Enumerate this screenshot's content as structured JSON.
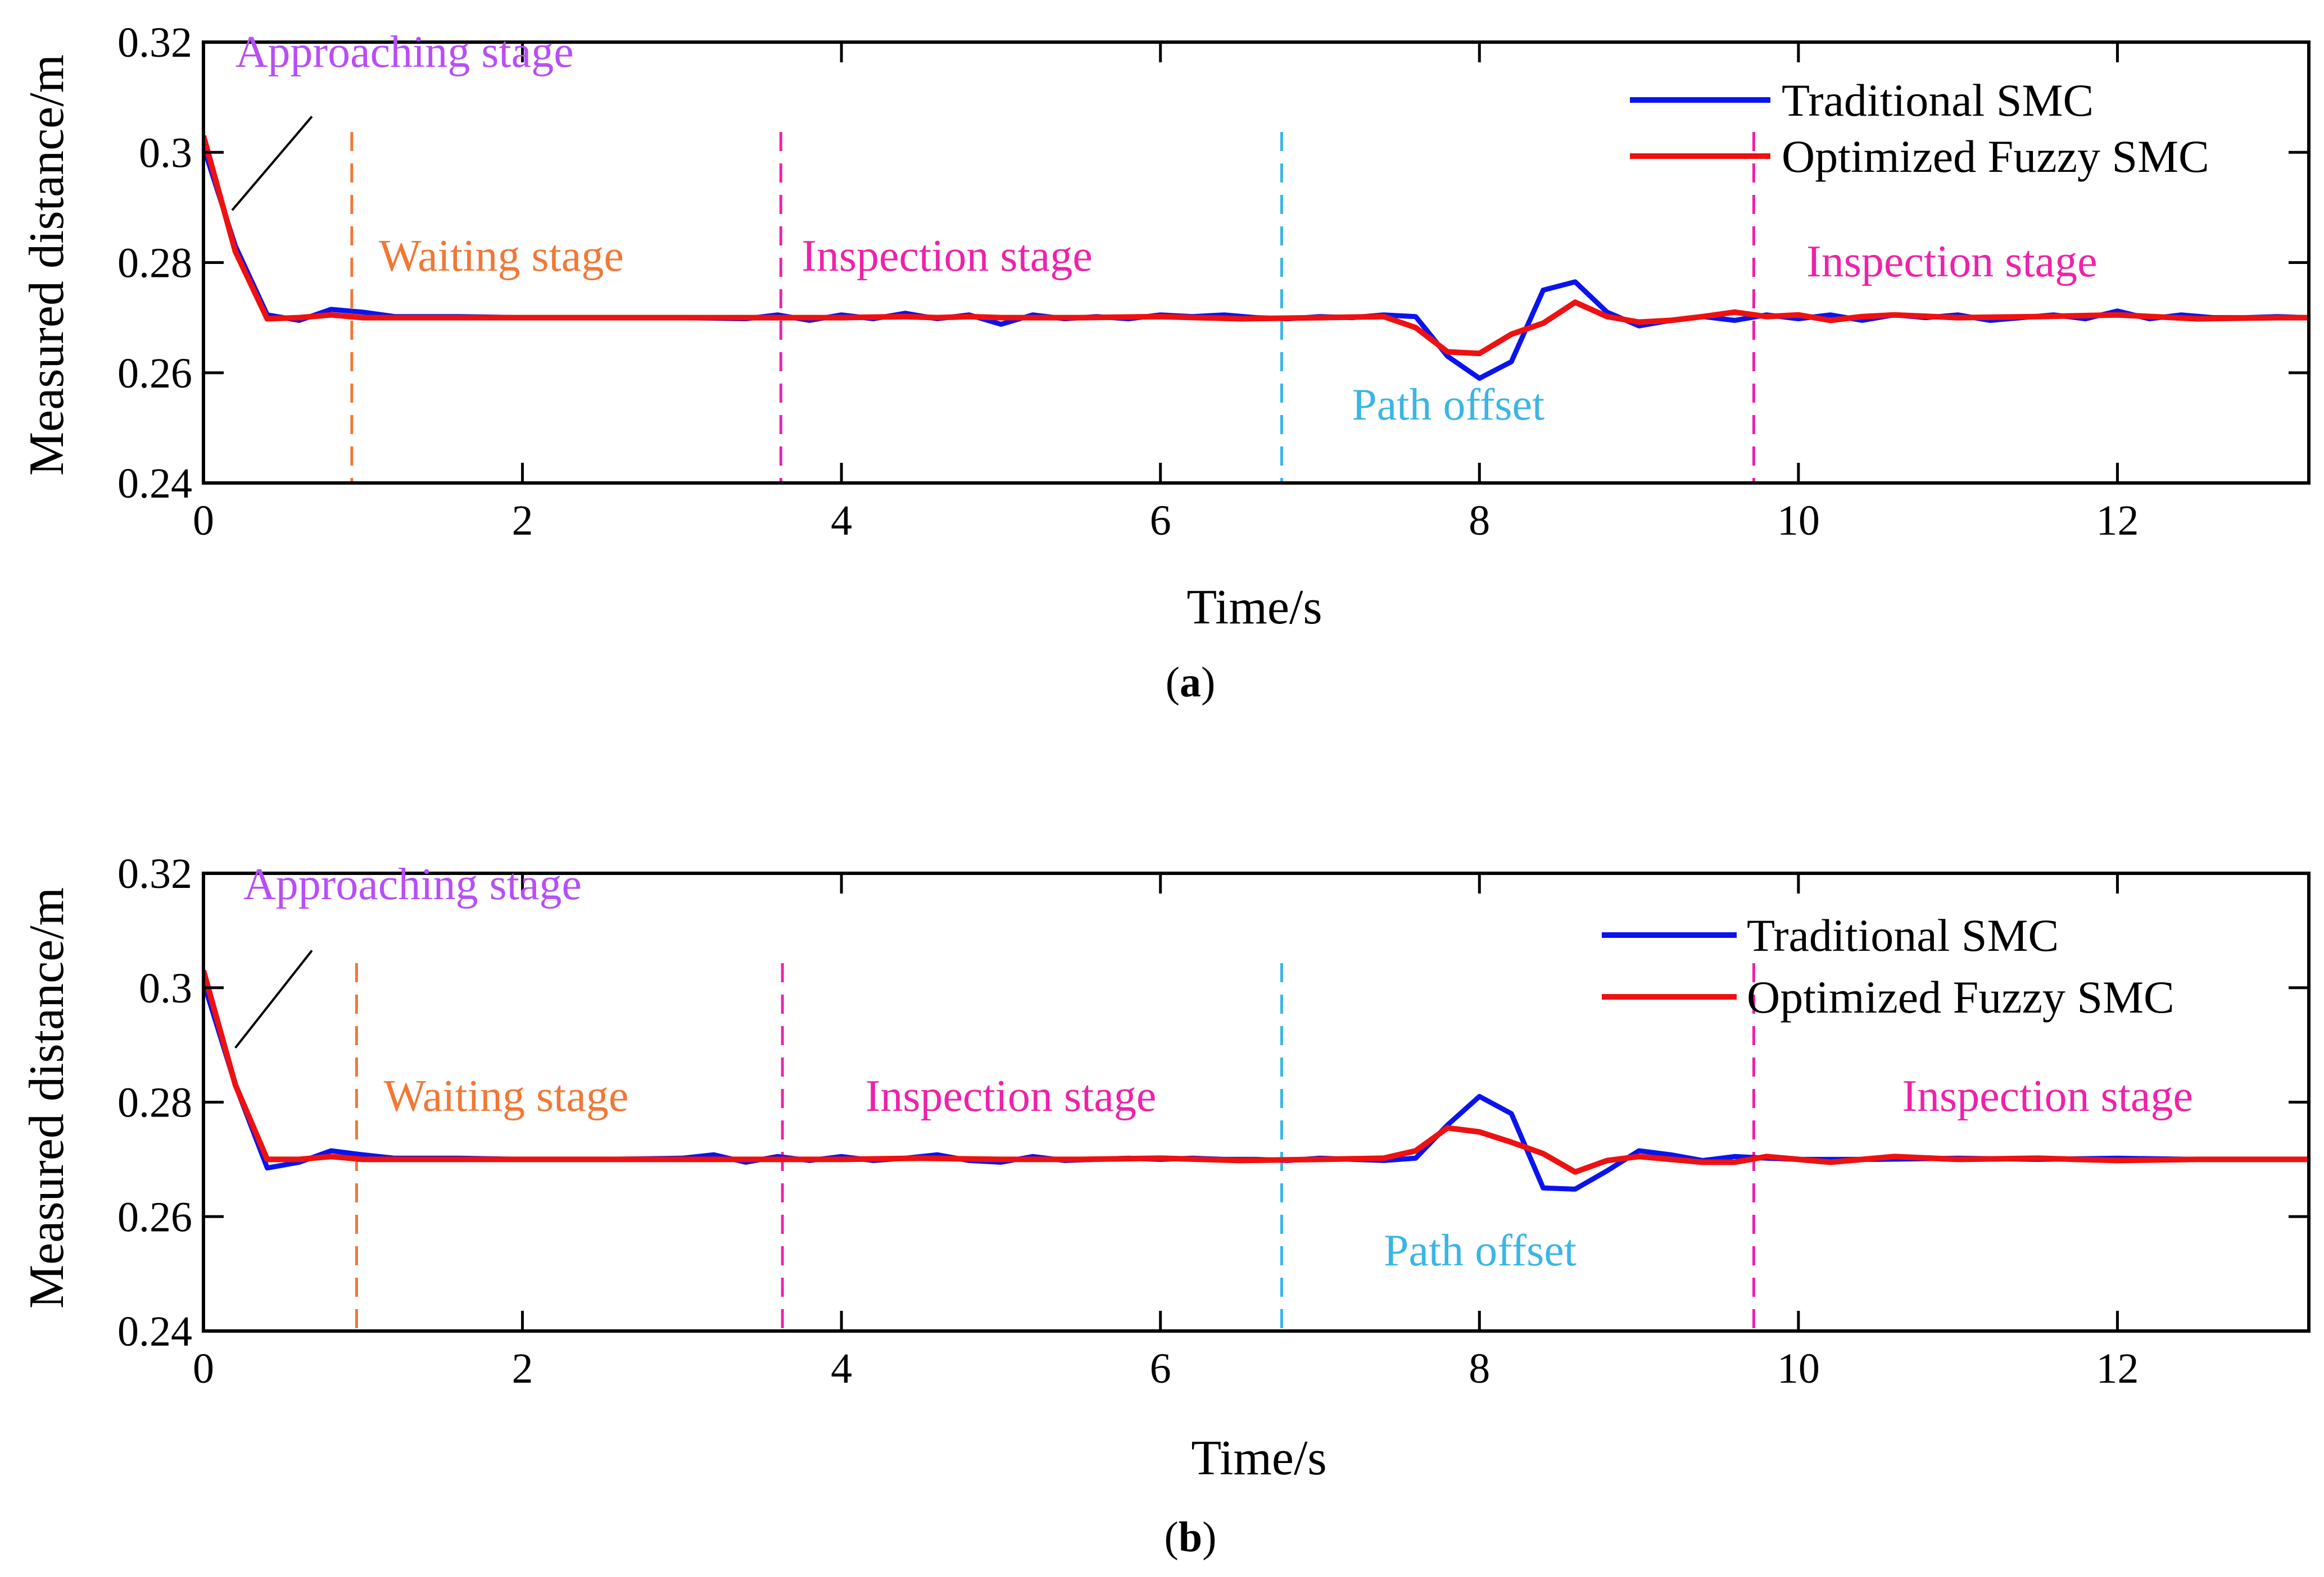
{
  "chart_data": [
    {
      "type": "line",
      "panel_label": "a",
      "xlabel": "Time/s",
      "ylabel": "Measured  distance/m",
      "xlim": [
        0,
        13.2
      ],
      "ylim": [
        0.24,
        0.32
      ],
      "xticks": [
        0,
        2,
        4,
        6,
        8,
        10,
        12
      ],
      "xtick_labels": [
        "0",
        "2",
        "4",
        "6",
        "8",
        "10",
        "12"
      ],
      "yticks": [
        0.24,
        0.26,
        0.28,
        0.3,
        0.32
      ],
      "ytick_labels": [
        "0.24",
        "0.26",
        "0.28",
        "0.3",
        "0.32"
      ],
      "grid": false,
      "legend_position": "top-right",
      "series": [
        {
          "name": "Traditional SMC",
          "color": "#0a14ee",
          "x": [
            0,
            0.2,
            0.4,
            0.6,
            0.8,
            1.0,
            1.2,
            1.6,
            2.0,
            2.5,
            3.0,
            3.4,
            3.6,
            3.8,
            4.0,
            4.2,
            4.4,
            4.6,
            4.8,
            5.0,
            5.2,
            5.4,
            5.6,
            5.8,
            6.0,
            6.2,
            6.4,
            6.6,
            6.8,
            7.0,
            7.2,
            7.4,
            7.6,
            7.8,
            8.0,
            8.2,
            8.4,
            8.6,
            8.8,
            9.0,
            9.2,
            9.4,
            9.6,
            9.8,
            10.0,
            10.2,
            10.4,
            10.6,
            10.8,
            11.0,
            11.2,
            11.4,
            11.6,
            11.8,
            12.0,
            12.2,
            12.4,
            12.6,
            12.8,
            13.0,
            13.2
          ],
          "y": [
            0.301,
            0.283,
            0.2705,
            0.2695,
            0.2715,
            0.271,
            0.2702,
            0.2702,
            0.27,
            0.27,
            0.27,
            0.2698,
            0.2705,
            0.2695,
            0.2705,
            0.2698,
            0.2708,
            0.2698,
            0.2705,
            0.2688,
            0.2705,
            0.2698,
            0.2702,
            0.2698,
            0.2705,
            0.2702,
            0.2705,
            0.27,
            0.2698,
            0.2702,
            0.27,
            0.2705,
            0.2702,
            0.263,
            0.259,
            0.262,
            0.275,
            0.2765,
            0.271,
            0.2685,
            0.2695,
            0.2702,
            0.2695,
            0.2705,
            0.2698,
            0.2705,
            0.2695,
            0.2705,
            0.27,
            0.2705,
            0.2695,
            0.27,
            0.2705,
            0.2698,
            0.2712,
            0.2698,
            0.2705,
            0.27,
            0.27,
            0.2702,
            0.27
          ]
        },
        {
          "name": "Optimized Fuzzy SMC",
          "color": "#ee1111",
          "x": [
            0,
            0.2,
            0.4,
            0.6,
            0.8,
            1.0,
            1.5,
            2.0,
            2.5,
            3.0,
            3.5,
            4.0,
            4.4,
            4.6,
            4.8,
            5.0,
            5.5,
            6.0,
            6.5,
            7.0,
            7.4,
            7.6,
            7.8,
            8.0,
            8.2,
            8.4,
            8.6,
            8.8,
            9.0,
            9.2,
            9.4,
            9.6,
            9.8,
            10.0,
            10.2,
            10.4,
            10.6,
            11.0,
            11.5,
            12.0,
            12.5,
            13.0,
            13.2
          ],
          "y": [
            0.303,
            0.282,
            0.2698,
            0.27,
            0.2705,
            0.27,
            0.27,
            0.27,
            0.27,
            0.27,
            0.27,
            0.27,
            0.2702,
            0.27,
            0.2702,
            0.27,
            0.27,
            0.2702,
            0.2698,
            0.27,
            0.2702,
            0.2682,
            0.2638,
            0.2635,
            0.267,
            0.269,
            0.2728,
            0.2702,
            0.2692,
            0.2695,
            0.2702,
            0.271,
            0.2702,
            0.2705,
            0.2695,
            0.2702,
            0.2705,
            0.27,
            0.2702,
            0.2705,
            0.2698,
            0.27,
            0.27
          ]
        }
      ],
      "annotations": [
        {
          "text": "Approaching stage",
          "color": "#b84ef6",
          "x": 0.2,
          "y": 0.3155
        },
        {
          "text": "Waiting stage",
          "color": "#f07836",
          "x": 1.1,
          "y": 0.2785
        },
        {
          "text": "Inspection stage",
          "color": "#ee22aa",
          "x": 3.75,
          "y": 0.2785
        },
        {
          "text": "Path offset",
          "color": "#3ab5e6",
          "x": 7.2,
          "y": 0.2515
        },
        {
          "text": "Inspection stage",
          "color": "#ee22aa",
          "x": 10.05,
          "y": 0.2775
        }
      ],
      "vlines": [
        {
          "x": 0.93,
          "color": "#f07836"
        },
        {
          "x": 3.62,
          "color": "#ee22aa"
        },
        {
          "x": 6.76,
          "color": "#3ab5e6"
        },
        {
          "x": 9.72,
          "color": "#ee22aa"
        }
      ],
      "pointer_line": {
        "from": [
          0.18,
          0.2895
        ],
        "to": [
          0.68,
          0.3065
        ]
      }
    },
    {
      "type": "line",
      "panel_label": "b",
      "xlabel": "Time/s",
      "ylabel": "Measured  distance/m",
      "xlim": [
        0,
        13.2
      ],
      "ylim": [
        0.24,
        0.32
      ],
      "xticks": [
        0,
        2,
        4,
        6,
        8,
        10,
        12
      ],
      "xtick_labels": [
        "0",
        "2",
        "4",
        "6",
        "8",
        "10",
        "12"
      ],
      "yticks": [
        0.24,
        0.26,
        0.28,
        0.3,
        0.32
      ],
      "ytick_labels": [
        "0.24",
        "0.26",
        "0.28",
        "0.3",
        "0.32"
      ],
      "grid": false,
      "legend_position": "top-right",
      "series": [
        {
          "name": "Traditional SMC",
          "color": "#0a14ee",
          "x": [
            0,
            0.2,
            0.4,
            0.6,
            0.8,
            1.0,
            1.2,
            1.6,
            2.0,
            2.5,
            3.0,
            3.2,
            3.4,
            3.6,
            3.8,
            4.0,
            4.2,
            4.4,
            4.6,
            4.8,
            5.0,
            5.2,
            5.4,
            5.6,
            5.8,
            6.0,
            6.2,
            6.4,
            6.6,
            6.8,
            7.0,
            7.2,
            7.4,
            7.6,
            7.8,
            8.0,
            8.2,
            8.4,
            8.6,
            8.8,
            9.0,
            9.2,
            9.4,
            9.6,
            9.8,
            10.0,
            10.5,
            11.0,
            11.5,
            12.0,
            12.5,
            13.0,
            13.2
          ],
          "y": [
            0.301,
            0.283,
            0.2685,
            0.2695,
            0.2715,
            0.2708,
            0.2702,
            0.2702,
            0.27,
            0.27,
            0.2702,
            0.2708,
            0.2695,
            0.2705,
            0.2698,
            0.2705,
            0.2698,
            0.2702,
            0.2708,
            0.2698,
            0.2695,
            0.2705,
            0.2698,
            0.27,
            0.2702,
            0.27,
            0.2702,
            0.27,
            0.27,
            0.2698,
            0.2702,
            0.27,
            0.2698,
            0.2702,
            0.276,
            0.281,
            0.278,
            0.265,
            0.2648,
            0.268,
            0.2715,
            0.2708,
            0.2698,
            0.2705,
            0.2702,
            0.27,
            0.27,
            0.2702,
            0.27,
            0.2702,
            0.27,
            0.27,
            0.27
          ]
        },
        {
          "name": "Optimized Fuzzy SMC",
          "color": "#ee1111",
          "x": [
            0,
            0.2,
            0.4,
            0.6,
            0.8,
            1.0,
            1.5,
            2.0,
            2.5,
            3.0,
            3.5,
            4.0,
            4.5,
            5.0,
            5.5,
            6.0,
            6.5,
            7.0,
            7.4,
            7.6,
            7.8,
            8.0,
            8.2,
            8.4,
            8.6,
            8.8,
            9.0,
            9.2,
            9.4,
            9.6,
            9.8,
            10.0,
            10.2,
            10.6,
            11.0,
            11.5,
            12.0,
            12.5,
            13.0,
            13.2
          ],
          "y": [
            0.303,
            0.283,
            0.27,
            0.27,
            0.2705,
            0.27,
            0.27,
            0.27,
            0.27,
            0.27,
            0.27,
            0.27,
            0.2702,
            0.27,
            0.27,
            0.2702,
            0.2698,
            0.27,
            0.2702,
            0.2715,
            0.2755,
            0.2748,
            0.273,
            0.271,
            0.2678,
            0.2698,
            0.2705,
            0.27,
            0.2695,
            0.2695,
            0.2705,
            0.27,
            0.2695,
            0.2705,
            0.27,
            0.2702,
            0.2698,
            0.27,
            0.27,
            0.27
          ]
        }
      ],
      "annotations": [
        {
          "text": "Approaching stage",
          "color": "#b84ef6",
          "x": 0.25,
          "y": 0.3155
        },
        {
          "text": "Waiting stage",
          "color": "#f07836",
          "x": 1.13,
          "y": 0.2785
        },
        {
          "text": "Inspection stage",
          "color": "#ee22aa",
          "x": 4.15,
          "y": 0.2785
        },
        {
          "text": "Path offset",
          "color": "#3ab5e6",
          "x": 7.4,
          "y": 0.2515
        },
        {
          "text": "Inspection stage",
          "color": "#ee22aa",
          "x": 10.65,
          "y": 0.2785
        }
      ],
      "vlines": [
        {
          "x": 0.96,
          "color": "#f07836"
        },
        {
          "x": 3.63,
          "color": "#ee22aa"
        },
        {
          "x": 6.76,
          "color": "#3ab5e6"
        },
        {
          "x": 9.72,
          "color": "#ee22aa"
        }
      ],
      "pointer_line": {
        "from": [
          0.2,
          0.2895
        ],
        "to": [
          0.68,
          0.3065
        ]
      }
    }
  ]
}
